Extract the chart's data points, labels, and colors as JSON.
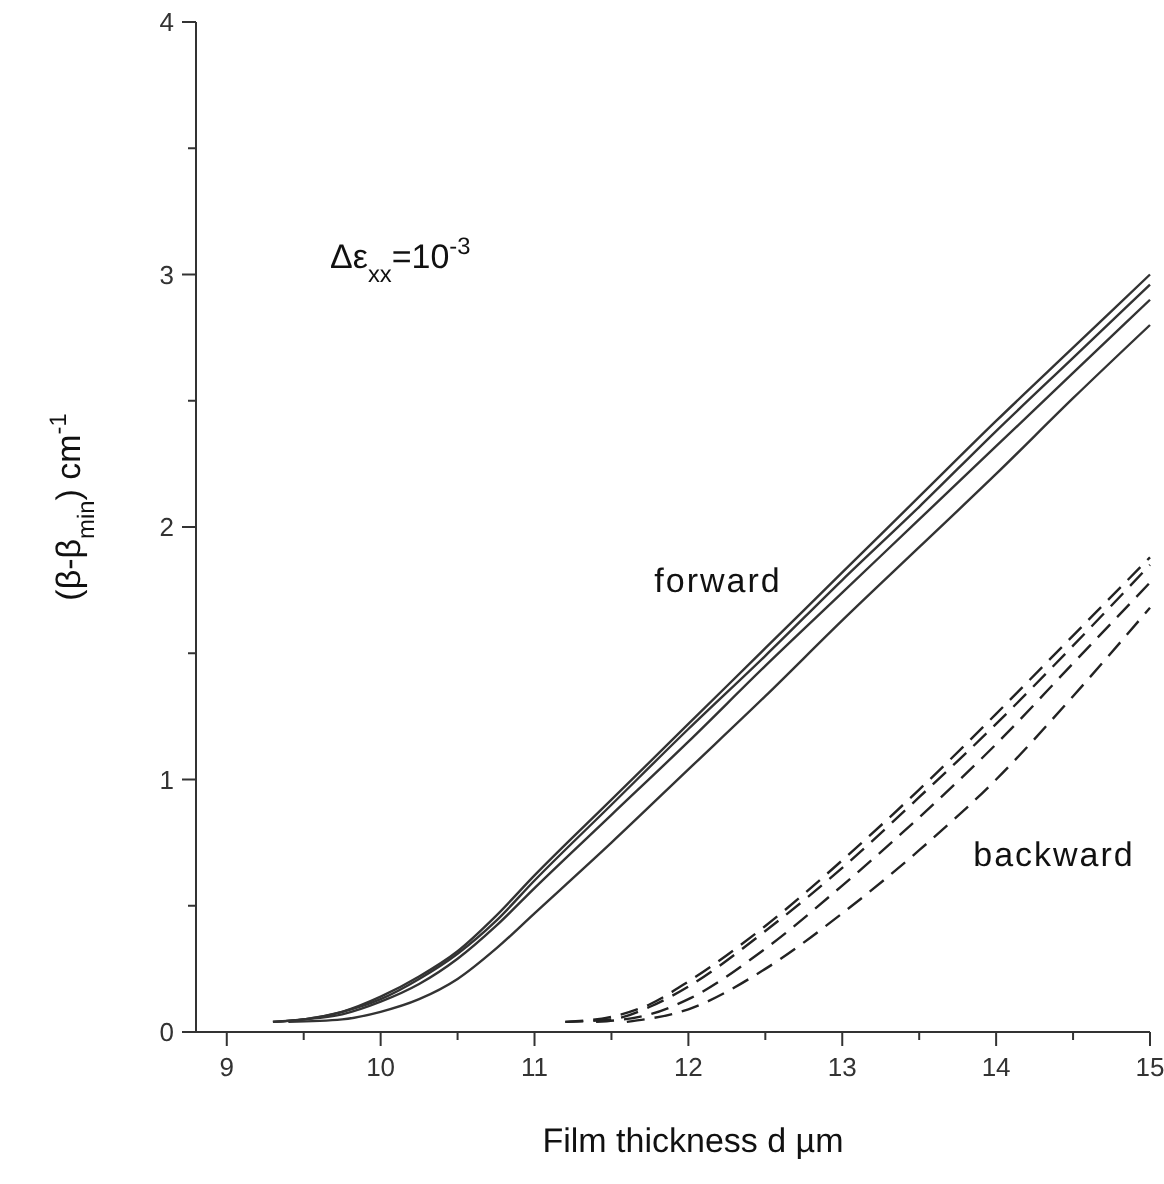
{
  "chart_data": {
    "type": "line",
    "xlabel": "Film thickness d µm",
    "ylabel": "(β-β$_{min}$) cm$^{-1}$",
    "xlim": [
      8.8,
      15
    ],
    "xticks": [
      9,
      {
        "value": 9.5,
        "label": null
      },
      10,
      {
        "value": 10.5,
        "label": null
      },
      11,
      {
        "value": 11.5,
        "label": null
      },
      12,
      {
        "value": 12.5,
        "label": null
      },
      13,
      {
        "value": 13.5,
        "label": null
      },
      14,
      {
        "value": 14.5,
        "label": null
      },
      15
    ],
    "ylim": [
      0,
      4
    ],
    "yticks": [
      0,
      {
        "value": 0.5,
        "label": null
      },
      1,
      {
        "value": 1.5,
        "label": null
      },
      2,
      {
        "value": 2.5,
        "label": null
      },
      3,
      {
        "value": 3.5,
        "label": null
      },
      4
    ],
    "series": [
      {
        "color": "#333333",
        "line_style": "solid",
        "x": [
          9.3,
          9.5,
          9.75,
          10,
          10.25,
          10.5,
          10.75,
          11,
          11.5,
          12,
          12.5,
          13,
          13.5,
          14,
          14.5,
          15
        ],
        "values": [
          0.04,
          0.05,
          0.08,
          0.14,
          0.22,
          0.32,
          0.46,
          0.62,
          0.92,
          1.22,
          1.52,
          1.82,
          2.12,
          2.42,
          2.71,
          3.0
        ]
      },
      {
        "color": "#333333",
        "line_style": "solid",
        "x": [
          9.3,
          9.5,
          9.75,
          10,
          10.25,
          10.5,
          10.75,
          11,
          11.5,
          12,
          12.5,
          13,
          13.5,
          14,
          14.5,
          15
        ],
        "values": [
          0.04,
          0.05,
          0.08,
          0.13,
          0.21,
          0.31,
          0.44,
          0.6,
          0.9,
          1.2,
          1.49,
          1.79,
          2.08,
          2.38,
          2.67,
          2.96
        ]
      },
      {
        "color": "#333333",
        "line_style": "solid",
        "x": [
          9.3,
          9.5,
          9.75,
          10,
          10.25,
          10.5,
          10.75,
          11,
          11.5,
          12,
          12.5,
          13,
          13.5,
          14,
          14.5,
          15
        ],
        "values": [
          0.04,
          0.05,
          0.07,
          0.12,
          0.19,
          0.29,
          0.42,
          0.57,
          0.86,
          1.15,
          1.45,
          1.74,
          2.03,
          2.32,
          2.61,
          2.9
        ]
      },
      {
        "color": "#333333",
        "line_style": "solid",
        "x": [
          9.4,
          9.75,
          10,
          10.25,
          10.5,
          10.75,
          11,
          11.5,
          12,
          12.5,
          13,
          13.5,
          14,
          14.5,
          15
        ],
        "values": [
          0.04,
          0.05,
          0.08,
          0.13,
          0.21,
          0.33,
          0.47,
          0.75,
          1.04,
          1.33,
          1.63,
          1.92,
          2.21,
          2.51,
          2.8
        ]
      },
      {
        "color": "#222222",
        "line_style": "dashed",
        "x": [
          11.2,
          11.5,
          11.75,
          12,
          12.5,
          13,
          13.5,
          14,
          14.5,
          15
        ],
        "values": [
          0.04,
          0.06,
          0.11,
          0.2,
          0.42,
          0.68,
          0.96,
          1.26,
          1.57,
          1.88
        ]
      },
      {
        "color": "#222222",
        "line_style": "dashed",
        "x": [
          11.2,
          11.5,
          11.75,
          12,
          12.5,
          13,
          13.5,
          14,
          14.5,
          15
        ],
        "values": [
          0.04,
          0.05,
          0.1,
          0.18,
          0.4,
          0.65,
          0.93,
          1.22,
          1.53,
          1.85
        ]
      },
      {
        "color": "#222222",
        "line_style": "dashed",
        "x": [
          11.4,
          11.75,
          12,
          12.5,
          13,
          13.5,
          14,
          14.5,
          15
        ],
        "values": [
          0.04,
          0.07,
          0.13,
          0.33,
          0.58,
          0.85,
          1.14,
          1.46,
          1.78
        ]
      },
      {
        "color": "#222222",
        "line_style": "dashed",
        "x": [
          11.6,
          12,
          12.5,
          13,
          13.5,
          14,
          14.5,
          15
        ],
        "values": [
          0.04,
          0.09,
          0.25,
          0.47,
          0.72,
          1.0,
          1.33,
          1.68
        ]
      }
    ],
    "annotations": [
      "Δε$_{xx}$=10$^{-3}$",
      "forward",
      "backward"
    ]
  }
}
